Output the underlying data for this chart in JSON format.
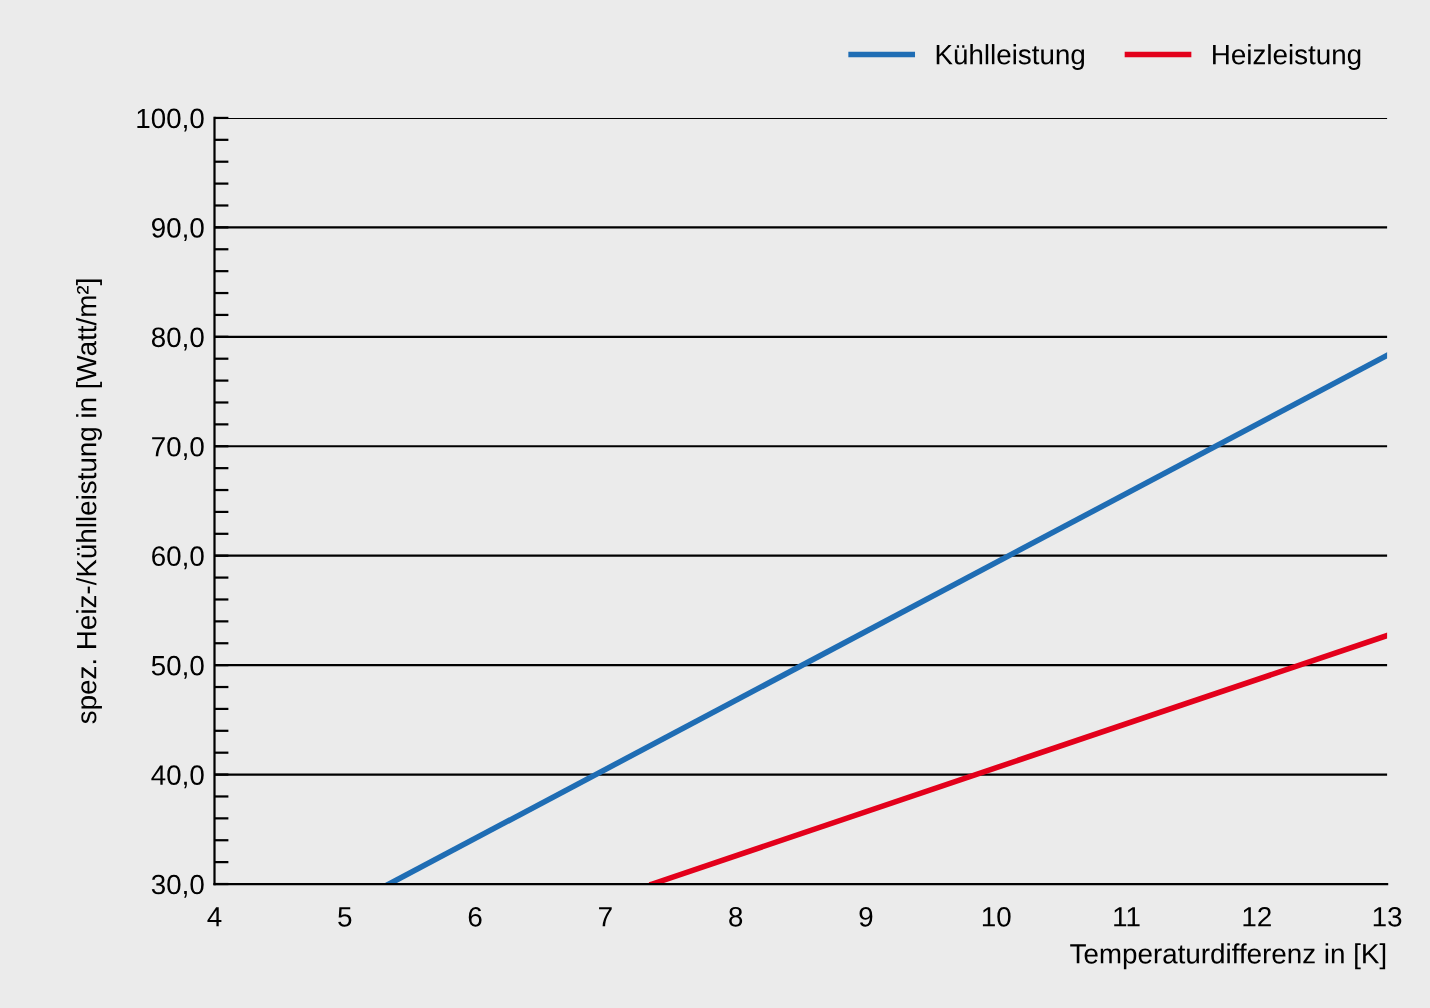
{
  "chart_data": {
    "type": "line",
    "xlabel": "Temperaturdifferenz in [K]",
    "ylabel": "spez. Heiz-/Kühlleistung in [Watt/m²]",
    "series": [
      {
        "name": "Kühlleistung",
        "color": "#1f6db4",
        "x": [
          5.34,
          13
        ],
        "values": [
          30,
          78.3
        ]
      },
      {
        "name": "Heizleistung",
        "color": "#e3001b",
        "x": [
          7.36,
          13
        ],
        "values": [
          30,
          52.7
        ]
      }
    ],
    "xlim": [
      4,
      13
    ],
    "xticks": [
      4,
      5,
      6,
      7,
      8,
      9,
      10,
      11,
      12,
      13
    ],
    "ylim": [
      30,
      100
    ],
    "yticks": [
      {
        "value": 30,
        "label": "30,0"
      },
      {
        "value": 32,
        "label": null
      },
      {
        "value": 34,
        "label": null
      },
      {
        "value": 36,
        "label": null
      },
      {
        "value": 38,
        "label": null
      },
      {
        "value": 40,
        "label": "40,0"
      },
      {
        "value": 42,
        "label": null
      },
      {
        "value": 44,
        "label": null
      },
      {
        "value": 46,
        "label": null
      },
      {
        "value": 48,
        "label": null
      },
      {
        "value": 50,
        "label": "50,0"
      },
      {
        "value": 52,
        "label": null
      },
      {
        "value": 54,
        "label": null
      },
      {
        "value": 56,
        "label": null
      },
      {
        "value": 58,
        "label": null
      },
      {
        "value": 60,
        "label": "60,0"
      },
      {
        "value": 62,
        "label": null
      },
      {
        "value": 64,
        "label": null
      },
      {
        "value": 66,
        "label": null
      },
      {
        "value": 68,
        "label": null
      },
      {
        "value": 70,
        "label": "70,0"
      },
      {
        "value": 72,
        "label": null
      },
      {
        "value": 74,
        "label": null
      },
      {
        "value": 76,
        "label": null
      },
      {
        "value": 78,
        "label": null
      },
      {
        "value": 80,
        "label": "80,0"
      },
      {
        "value": 82,
        "label": null
      },
      {
        "value": 84,
        "label": null
      },
      {
        "value": 86,
        "label": null
      },
      {
        "value": 88,
        "label": null
      },
      {
        "value": 90,
        "label": "90,0"
      },
      {
        "value": 92,
        "label": null
      },
      {
        "value": 94,
        "label": null
      },
      {
        "value": 96,
        "label": null
      },
      {
        "value": 98,
        "label": null
      },
      {
        "value": 100,
        "label": "100,0"
      }
    ],
    "grid": "y",
    "legend": "top right",
    "line_style": "solid",
    "marker": "none"
  }
}
